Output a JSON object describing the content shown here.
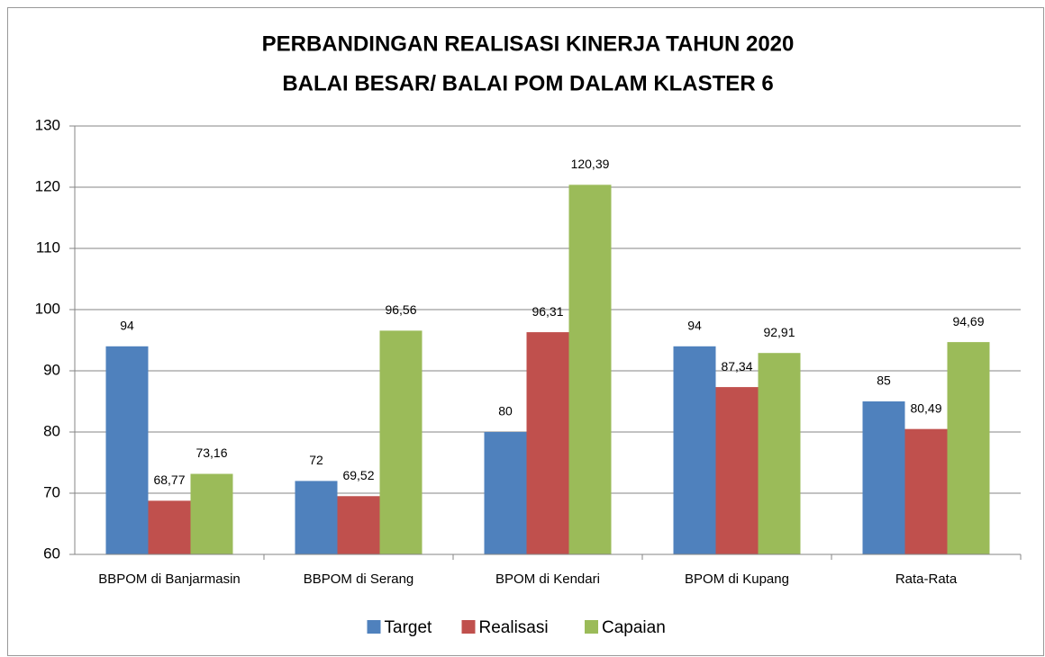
{
  "chart_data": {
    "type": "bar",
    "title": [
      "PERBANDINGAN REALISASI KINERJA TAHUN 2020",
      "BALAI BESAR/ BALAI POM DALAM KLASTER 6"
    ],
    "categories": [
      "BBPOM di Banjarmasin",
      "BBPOM di Serang",
      "BPOM di Kendari",
      "BPOM di Kupang",
      "Rata-Rata"
    ],
    "series": [
      {
        "name": "Target",
        "color": "#4f81bd",
        "values": [
          94,
          72,
          80,
          94,
          85
        ]
      },
      {
        "name": "Realisasi",
        "color": "#c0504d",
        "values": [
          68.77,
          69.52,
          96.31,
          87.34,
          80.49
        ],
        "value_labels": [
          "68,77",
          "69,52",
          "96,31",
          "87,34",
          "80,49"
        ]
      },
      {
        "name": "Capaian",
        "color": "#9bbb59",
        "values": [
          73.16,
          96.56,
          120.39,
          92.91,
          94.69
        ],
        "value_labels": [
          "73,16",
          "96,56",
          "120,39",
          "92,91",
          "94,69"
        ]
      }
    ],
    "ylim": [
      60,
      130
    ],
    "yticks": [
      60,
      70,
      80,
      90,
      100,
      110,
      120,
      130
    ],
    "grid": true,
    "legend": "bottom"
  }
}
